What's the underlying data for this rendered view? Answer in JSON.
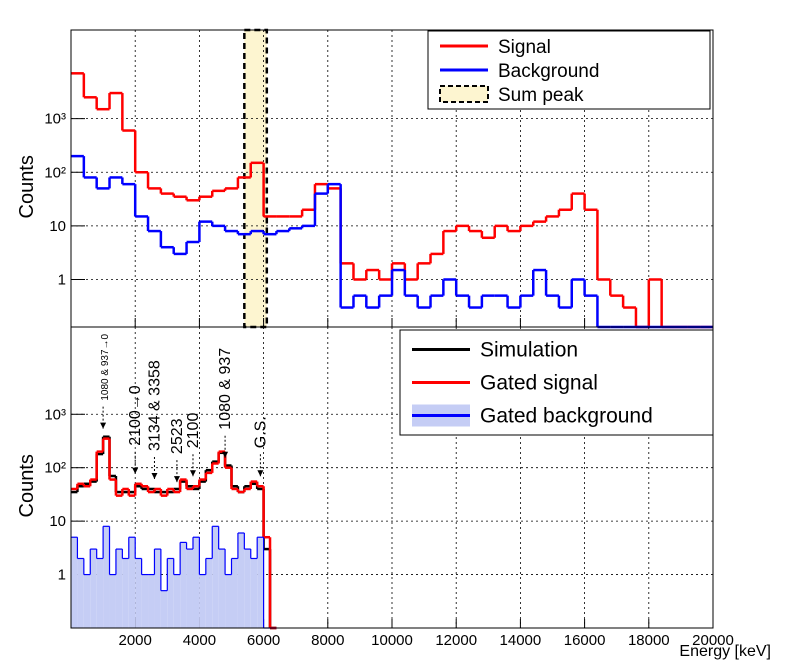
{
  "chart_data": [
    {
      "type": "histogram",
      "ylabel": "Counts",
      "log_y": true,
      "grid": true,
      "legend": "top-right",
      "xlim": [
        0,
        20000
      ],
      "xticks": [
        2000,
        4000,
        6000,
        8000,
        10000,
        12000,
        14000,
        16000,
        18000,
        20000
      ],
      "ylim": [
        0.13,
        45000
      ],
      "yticks": [
        1,
        10,
        {
          "value": 100,
          "label": "10²"
        },
        {
          "value": 1000,
          "label": "10³"
        }
      ],
      "bins": [
        0,
        400,
        800,
        1200,
        1600,
        2000,
        2400,
        2800,
        3200,
        3600,
        4000,
        4400,
        4800,
        5200,
        5600,
        6000,
        6400,
        6800,
        7200,
        7600,
        8000,
        8400,
        8800,
        9200,
        9600,
        10000,
        10400,
        10800,
        11200,
        11600,
        12000,
        12400,
        12800,
        13200,
        13600,
        14000,
        14400,
        14800,
        15200,
        15600,
        16000,
        16400,
        16800,
        17200,
        17600,
        18000,
        18400,
        18800,
        19200,
        19600,
        20000
      ],
      "band": {
        "name": "Sum peak",
        "color": "#fdf5d0",
        "range": [
          5400,
          6100
        ]
      },
      "series": [
        {
          "name": "Signal",
          "color": "#ff0000",
          "values": [
            7000,
            2500,
            1500,
            3000,
            600,
            100,
            50,
            40,
            35,
            30,
            35,
            45,
            50,
            80,
            150,
            15,
            15,
            15,
            20,
            60,
            50,
            2,
            1,
            1.5,
            1,
            2,
            1,
            2,
            3,
            8,
            10,
            8,
            6,
            10,
            8,
            10,
            12,
            15,
            20,
            40,
            20,
            1,
            0.5,
            0.3,
            0,
            1,
            0,
            0,
            0,
            0
          ]
        },
        {
          "name": "Background",
          "color": "#0000ff",
          "values": [
            200,
            80,
            50,
            80,
            60,
            15,
            8,
            4,
            3,
            5,
            12,
            10,
            8,
            7,
            8,
            7,
            8,
            9,
            10,
            40,
            60,
            0.3,
            0.5,
            0.3,
            0.5,
            1.5,
            0.5,
            0.3,
            0.5,
            1,
            0.5,
            0.3,
            0.5,
            0.5,
            0.3,
            0.5,
            1.5,
            0.5,
            0.3,
            1,
            0.5,
            0,
            0,
            0,
            0,
            0,
            0,
            0,
            0,
            0
          ]
        }
      ]
    },
    {
      "type": "histogram",
      "ylabel": "Counts",
      "xlabel": "Energy [keV]",
      "log_y": true,
      "grid": true,
      "legend": "top-right",
      "xlim": [
        0,
        20000
      ],
      "xticks": [
        2000,
        4000,
        6000,
        8000,
        10000,
        12000,
        14000,
        16000,
        18000,
        20000
      ],
      "ylim": [
        0.1,
        43000
      ],
      "yticks": [
        1,
        10,
        {
          "value": 100,
          "label": "10²"
        },
        {
          "value": 1000,
          "label": "10³"
        }
      ],
      "bins": [
        0,
        200,
        400,
        600,
        800,
        1000,
        1200,
        1400,
        1600,
        1800,
        2000,
        2200,
        2400,
        2600,
        2800,
        3000,
        3200,
        3400,
        3600,
        3800,
        4000,
        4200,
        4400,
        4600,
        4800,
        5000,
        5200,
        5400,
        5600,
        5800,
        6000,
        6200,
        6400
      ],
      "series": [
        {
          "name": "Simulation",
          "color": "#000000",
          "values": [
            35,
            45,
            50,
            55,
            180,
            380,
            70,
            35,
            35,
            35,
            45,
            40,
            40,
            35,
            35,
            35,
            40,
            55,
            45,
            40,
            55,
            90,
            130,
            190,
            110,
            45,
            35,
            45,
            50,
            40,
            3,
            0
          ]
        },
        {
          "name": "Gated signal",
          "color": "#ff0000",
          "values": [
            40,
            50,
            45,
            60,
            200,
            350,
            60,
            30,
            40,
            30,
            50,
            45,
            35,
            40,
            30,
            40,
            35,
            60,
            40,
            45,
            60,
            80,
            120,
            200,
            100,
            40,
            35,
            40,
            55,
            45,
            5,
            0
          ]
        },
        {
          "name": "Gated background",
          "color": "#0000ff",
          "fill": "#c5cdf5",
          "values": [
            5,
            2,
            1,
            3,
            2,
            8,
            1,
            3,
            2,
            5,
            2,
            1,
            1,
            3,
            0.5,
            2,
            1,
            4,
            3,
            5,
            1,
            2,
            8,
            3,
            1,
            2,
            6,
            3,
            2,
            5,
            0,
            0
          ]
        }
      ],
      "annotations": [
        {
          "text": "1080 & 937→0",
          "x": 1000
        },
        {
          "text": "2100→0",
          "x": 2000
        },
        {
          "text": "3134 & 3358",
          "x": 2600
        },
        {
          "text": "2523",
          "x": 3300
        },
        {
          "text": "2100",
          "x": 3800
        },
        {
          "text": "1080 & 937",
          "x": 4800
        },
        {
          "text": "G.S.",
          "x": 5900
        }
      ]
    }
  ]
}
